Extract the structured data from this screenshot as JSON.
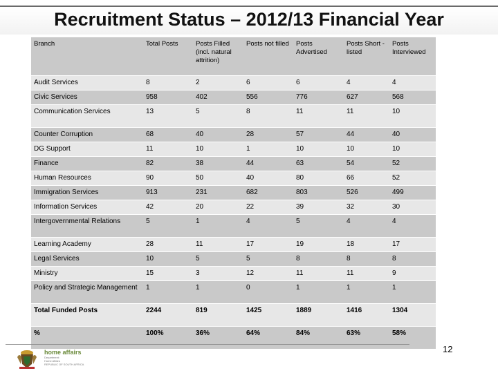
{
  "title": "Recruitment Status – 2012/13 Financial Year",
  "table": {
    "headers": [
      "Branch",
      "Total Posts",
      "Posts Filled (incl. natural attrition)",
      "Posts not filled",
      "Posts Advertised",
      "Posts Short -listed",
      "Posts Interviewed"
    ],
    "rows": [
      [
        "Audit Services",
        "8",
        "2",
        "6",
        "6",
        "4",
        "4"
      ],
      [
        "Civic Services",
        "958",
        "402",
        "556",
        "776",
        "627",
        "568"
      ],
      [
        "Communication Services",
        "13",
        "5",
        "8",
        "11",
        "11",
        "10"
      ],
      [
        "Counter Corruption",
        "68",
        "40",
        "28",
        "57",
        "44",
        "40"
      ],
      [
        "DG Support",
        "11",
        "10",
        "1",
        "10",
        "10",
        "10"
      ],
      [
        "Finance",
        "82",
        "38",
        "44",
        "63",
        "54",
        "52"
      ],
      [
        "Human Resources",
        "90",
        "50",
        "40",
        "80",
        "66",
        "52"
      ],
      [
        "Immigration Services",
        "913",
        "231",
        "682",
        "803",
        "526",
        "499"
      ],
      [
        "Information Services",
        "42",
        "20",
        "22",
        "39",
        "32",
        "30"
      ],
      [
        "Intergovernmental Relations",
        "5",
        "1",
        "4",
        "5",
        "4",
        "4"
      ],
      [
        "Learning Academy",
        "28",
        "11",
        "17",
        "19",
        "18",
        "17"
      ],
      [
        "Legal Services",
        "10",
        "5",
        "5",
        "8",
        "8",
        "8"
      ],
      [
        "Ministry",
        "15",
        "3",
        "12",
        "11",
        "11",
        "9"
      ],
      [
        "Policy and Strategic Management",
        "1",
        "1",
        "0",
        "1",
        "1",
        "1"
      ],
      [
        "Total Funded Posts",
        "2244",
        "819",
        "1425",
        "1889",
        "1416",
        "1304"
      ],
      [
        "%",
        "100%",
        "36%",
        "64%",
        "84%",
        "63%",
        "58%"
      ]
    ]
  },
  "footer": {
    "page_number": "12",
    "brand_name": "home affairs",
    "brand_sub_1": "Department:",
    "brand_sub_2": "Home Affairs",
    "brand_sub_3": "REPUBLIC OF SOUTH AFRICA"
  },
  "colors": {
    "row_dark": "#c9c9c9",
    "row_light": "#e7e7e7",
    "brand_green": "#6a8a3a"
  }
}
